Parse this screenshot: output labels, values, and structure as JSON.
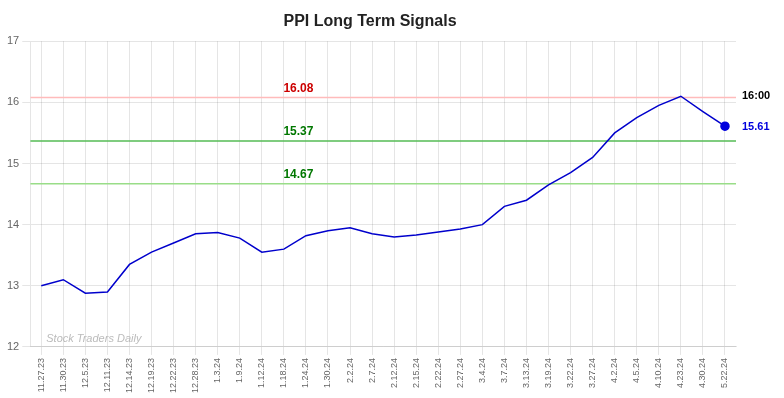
{
  "chart_data": {
    "type": "line",
    "title": "PPI Long Term Signals",
    "categories": [
      "11.27.23",
      "11.30.23",
      "12.5.23",
      "12.11.23",
      "12.14.23",
      "12.19.23",
      "12.22.23",
      "12.28.23",
      "1.3.24",
      "1.9.24",
      "1.12.24",
      "1.18.24",
      "1.24.24",
      "1.30.24",
      "2.2.24",
      "2.7.24",
      "2.12.24",
      "2.15.24",
      "2.22.24",
      "2.27.24",
      "3.4.24",
      "3.7.24",
      "3.13.24",
      "3.19.24",
      "3.22.24",
      "3.27.24",
      "4.2.24",
      "4.5.24",
      "4.10.24",
      "4.23.24",
      "4.30.24",
      "5.22.24"
    ],
    "values": [
      13.0,
      13.1,
      12.88,
      12.9,
      13.35,
      13.55,
      13.7,
      13.85,
      13.87,
      13.78,
      13.55,
      13.6,
      13.82,
      13.9,
      13.95,
      13.85,
      13.8,
      13.83,
      13.88,
      13.93,
      14.0,
      14.3,
      14.4,
      14.65,
      14.85,
      15.1,
      15.5,
      15.75,
      15.95,
      16.1,
      15.85,
      15.61
    ],
    "color": "#0000cc",
    "ylim": [
      12,
      17
    ],
    "yticks": [
      12,
      13,
      14,
      15,
      16,
      17
    ],
    "grid": true,
    "annotations": [
      {
        "type": "hline",
        "y": 16.08,
        "color": "#ffbbbb",
        "label": "16.08",
        "label_color": "#cc0000",
        "end_label": "16:00"
      },
      {
        "type": "hline",
        "y": 15.37,
        "color": "#55bb55",
        "label": "15.37",
        "label_color": "#007700"
      },
      {
        "type": "hline",
        "y": 14.67,
        "color": "#99dd88",
        "label": "14.67",
        "label_color": "#007700"
      },
      {
        "type": "last_point",
        "label": "15.61",
        "color": "#0000dd"
      },
      {
        "type": "watermark",
        "text": "Stock Traders Daily",
        "color": "#bbbbbb"
      }
    ]
  }
}
